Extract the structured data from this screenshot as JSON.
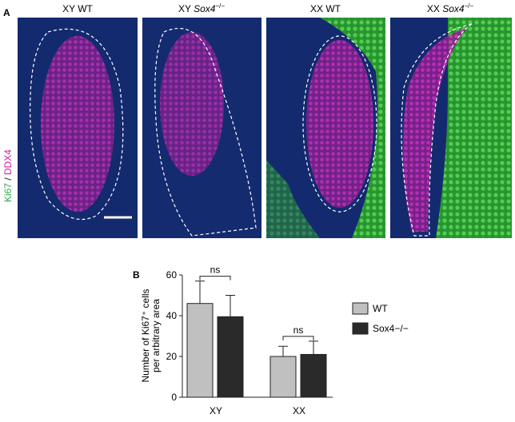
{
  "panel_a": {
    "label": "A",
    "columns": [
      {
        "text": "XY WT"
      },
      {
        "prefix": "XY ",
        "gene": "Sox4",
        "sup": "−/−"
      },
      {
        "text": "XX WT"
      },
      {
        "prefix": "XX ",
        "gene": "Sox4",
        "sup": "−/−"
      }
    ],
    "stain": {
      "first": "Ki67",
      "sep": " / ",
      "second": "DDX4"
    }
  },
  "chart_data": {
    "type": "bar",
    "panel_label": "B",
    "ylabel_lines": [
      "Number of Ki67⁺ cells",
      "per arbitrary area"
    ],
    "categories": [
      "XY",
      "XX"
    ],
    "series": [
      {
        "name": "WT",
        "color": "#c0c0c0",
        "values": [
          46,
          20
        ],
        "errors": [
          11,
          5
        ]
      },
      {
        "name": "Sox4−/−",
        "color": "#2b2a2a",
        "values": [
          39.5,
          21
        ],
        "errors": [
          10.5,
          6.5
        ]
      }
    ],
    "ylim": [
      0,
      60
    ],
    "yticks": [
      0,
      20,
      40,
      60
    ],
    "annotations": [
      "ns",
      "ns"
    ]
  }
}
